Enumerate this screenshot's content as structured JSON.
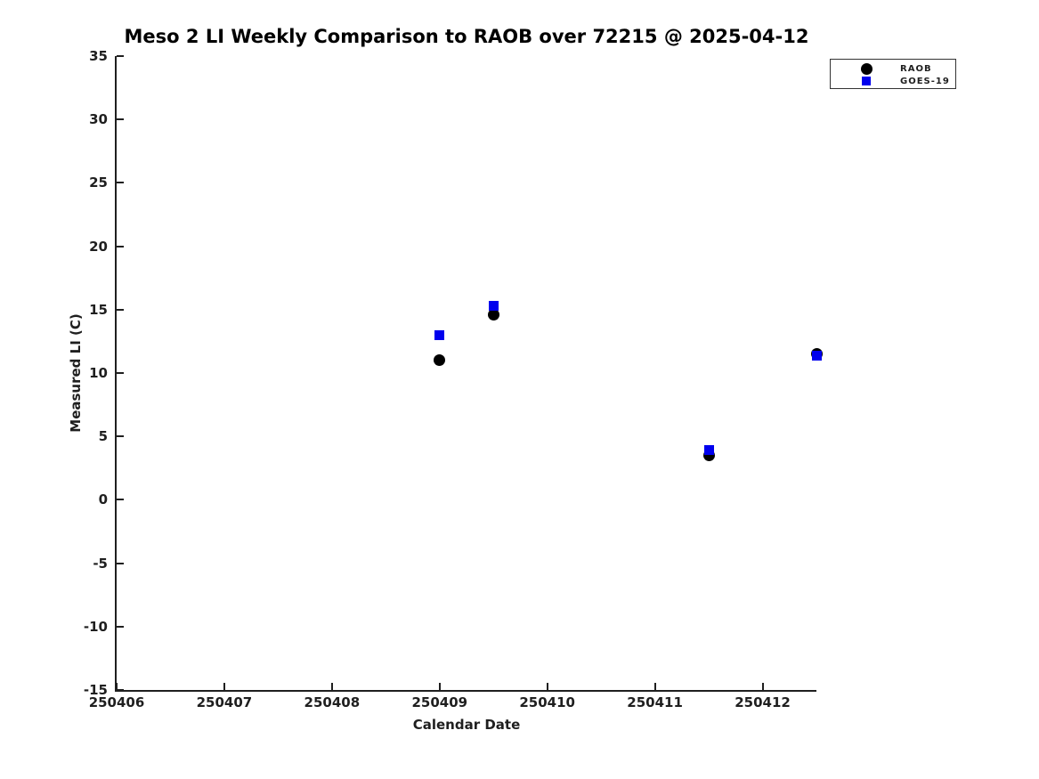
{
  "chart_data": {
    "type": "scatter",
    "title": "Meso 2 LI Weekly Comparison to RAOB over 72215 @ 2025-04-12",
    "xlabel": "Calendar Date",
    "ylabel": "Measured LI (C)",
    "xlim": [
      250406,
      250412.5
    ],
    "ylim": [
      -15,
      35
    ],
    "x_ticks": [
      250406,
      250407,
      250408,
      250409,
      250410,
      250411,
      250412
    ],
    "y_ticks": [
      35,
      30,
      25,
      20,
      15,
      10,
      5,
      0,
      -5,
      -10,
      -15
    ],
    "grid": false,
    "legend_position": "top-right",
    "series": [
      {
        "name": "RAOB",
        "marker": "circle",
        "color": "#000000",
        "points": [
          [
            250409.0,
            11.0
          ],
          [
            250409.5,
            14.6
          ],
          [
            250411.5,
            3.5
          ],
          [
            250412.5,
            11.5
          ]
        ]
      },
      {
        "name": "GOES-19",
        "marker": "square",
        "color": "#0000ee",
        "points": [
          [
            250409.0,
            13.0
          ],
          [
            250409.5,
            15.3
          ],
          [
            250411.5,
            3.9
          ],
          [
            250412.5,
            11.4
          ]
        ]
      }
    ],
    "colors": {
      "axis": "#1f1f1f",
      "text": "#1f1f1f",
      "background": "#ffffff"
    }
  }
}
